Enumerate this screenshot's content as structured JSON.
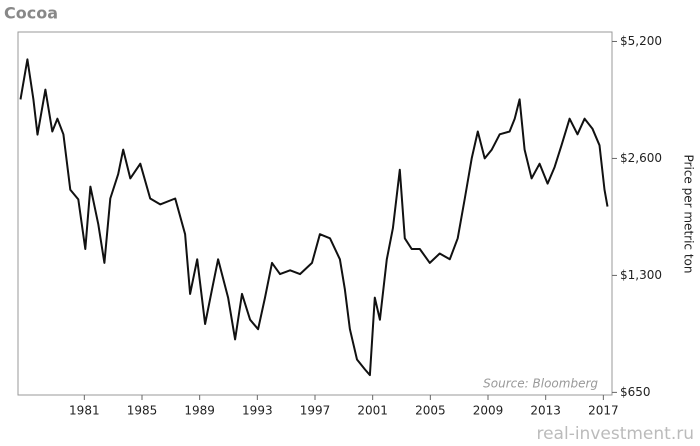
{
  "chart_data": {
    "type": "line",
    "title": "Cocoa",
    "y_label": "Price per metric ton",
    "annotation": "Source: Bloomberg",
    "watermark": "real-investment.ru",
    "x": [
      1976.57,
      1977.05,
      1977.47,
      1977.75,
      1978.3,
      1978.78,
      1979.13,
      1979.55,
      1980.03,
      1980.58,
      1981.07,
      1981.42,
      1981.97,
      1982.39,
      1982.8,
      1983.35,
      1983.7,
      1984.19,
      1984.88,
      1985.57,
      1986.26,
      1987.3,
      1987.99,
      1988.34,
      1988.83,
      1989.38,
      1989.86,
      1990.28,
      1990.97,
      1991.46,
      1991.94,
      1992.5,
      1993.05,
      1993.53,
      1994.02,
      1994.57,
      1995.27,
      1995.96,
      1996.79,
      1997.34,
      1998.04,
      1998.73,
      1999.07,
      1999.42,
      1999.91,
      2000.46,
      2000.81,
      2001.15,
      2001.5,
      2001.98,
      2002.4,
      2002.88,
      2003.23,
      2003.71,
      2004.27,
      2004.96,
      2005.65,
      2006.35,
      2006.9,
      2007.39,
      2007.87,
      2008.29,
      2008.77,
      2009.26,
      2009.81,
      2010.5,
      2010.85,
      2011.19,
      2011.54,
      2012.02,
      2012.58,
      2013.13,
      2013.62,
      2014.1,
      2014.66,
      2015.21,
      2015.7,
      2016.25,
      2016.73,
      2017.08,
      2017.29
    ],
    "values": [
      3690,
      4675,
      3690,
      2995,
      3910,
      3050,
      3290,
      3000,
      2160,
      2040,
      1520,
      2200,
      1760,
      1400,
      2050,
      2370,
      2740,
      2310,
      2520,
      2050,
      1980,
      2050,
      1660,
      1165,
      1430,
      975,
      1200,
      1430,
      1140,
      890,
      1165,
      1000,
      945,
      1140,
      1400,
      1310,
      1340,
      1310,
      1400,
      1660,
      1620,
      1430,
      1200,
      945,
      790,
      745,
      720,
      1140,
      1000,
      1430,
      1720,
      2430,
      1620,
      1520,
      1520,
      1400,
      1480,
      1430,
      1620,
      2050,
      2600,
      3050,
      2600,
      2740,
      3000,
      3050,
      3290,
      3690,
      2740,
      2310,
      2520,
      2240,
      2470,
      2810,
      3290,
      3000,
      3290,
      3100,
      2810,
      2160,
      1955
    ],
    "color": "#111111",
    "log_scale": true,
    "xlim": [
      1976.4,
      2017.6
    ],
    "xticks": [
      1981,
      1985,
      1989,
      1993,
      1997,
      2001,
      2005,
      2009,
      2013,
      2017
    ],
    "ylim": [
      640,
      5500
    ],
    "yticks": [
      {
        "value": 650,
        "label": "$650"
      },
      {
        "value": 1300,
        "label": "$1,300"
      },
      {
        "value": 2600,
        "label": "$2,600"
      },
      {
        "value": 5200,
        "label": "$5,200"
      }
    ]
  }
}
